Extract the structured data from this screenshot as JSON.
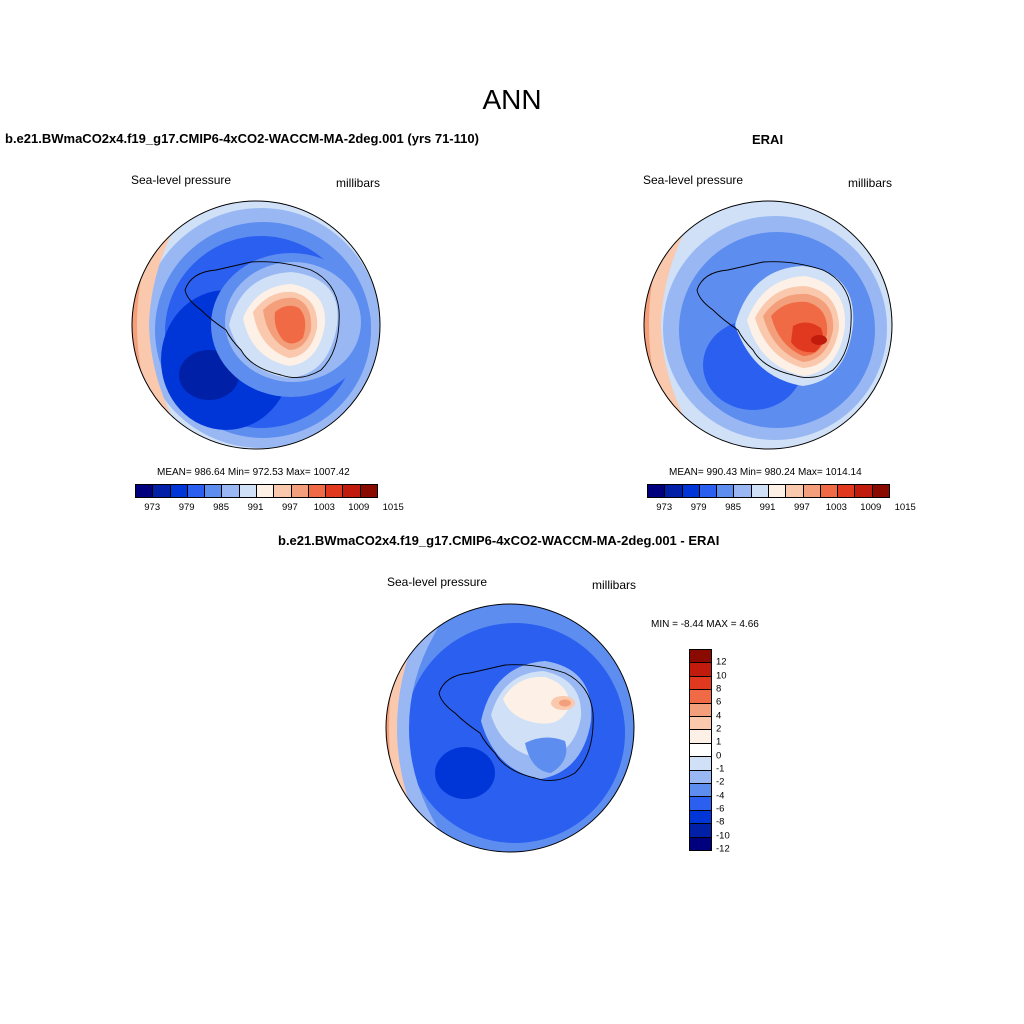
{
  "title": "ANN",
  "panels": [
    {
      "title": "b.e21.BWmaCO2x4.f19_g17.CMIP6-4xCO2-WACCM-MA-2deg.001 (yrs 71-110)",
      "variable": "Sea-level pressure",
      "units": "millibars",
      "stats": "MEAN= 986.64  Min= 972.53  Max= 1007.42"
    },
    {
      "title": "ERAI",
      "variable": "Sea-level pressure",
      "units": "millibars",
      "stats": "MEAN= 990.43  Min= 980.24  Max= 1014.14"
    },
    {
      "title": "b.e21.BWmaCO2x4.f19_g17.CMIP6-4xCO2-WACCM-MA-2deg.001 - ERAI",
      "variable": "Sea-level pressure",
      "units": "millibars",
      "stats": "MIN =  -8.44 MAX =   4.66"
    }
  ],
  "colorbar_abs": {
    "ticks": [
      "973",
      "979",
      "985",
      "991",
      "997",
      "1003",
      "1009",
      "1015"
    ],
    "colors": [
      "#00007e",
      "#0020a8",
      "#0035d8",
      "#2a5ff0",
      "#5e8df0",
      "#99b8f3",
      "#cfe0f7",
      "#fdf0e6",
      "#f9c8ad",
      "#f49f7b",
      "#ef6a45",
      "#e1391f",
      "#c11b0e",
      "#8b0a00"
    ]
  },
  "colorbar_diff": {
    "ticks": [
      "12",
      "10",
      "8",
      "6",
      "4",
      "2",
      "1",
      "0",
      "-1",
      "-2",
      "-4",
      "-6",
      "-8",
      "-10",
      "-12"
    ],
    "colors": [
      "#8b0a00",
      "#c11b0e",
      "#e1391f",
      "#ef6a45",
      "#f49f7b",
      "#f9c8ad",
      "#fdf0e6",
      "#ffffff",
      "#cfe0f7",
      "#99b8f3",
      "#5e8df0",
      "#2a5ff0",
      "#0035d8",
      "#0020a8",
      "#00007e"
    ]
  }
}
